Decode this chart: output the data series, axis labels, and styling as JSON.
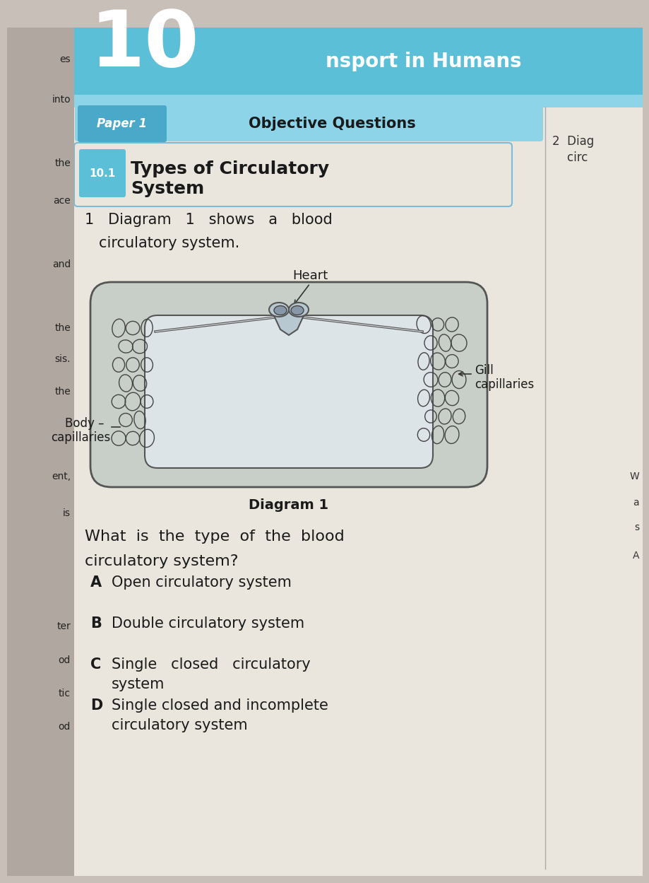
{
  "bg_color": "#c8c0b8",
  "page_bg": "#eae6de",
  "header_bg": "#5bbfd8",
  "header_text": "nsport in Humans",
  "chapter_num": "10",
  "paper_label": "Paper 1",
  "paper_section": "Objective Questions",
  "section_num": "10.1",
  "section_title_line1": "Types of Circulatory",
  "section_title_line2": "System",
  "question_text_line1": "1   Diagram   1   shows   a   blood",
  "question_text_line2": "circulatory system.",
  "diagram_label": "Diagram 1",
  "heart_label": "Heart",
  "gill_label": "Gill",
  "gill_label2": "capillaries",
  "body_label": "Body –",
  "body_label2": "capillaries",
  "question_main_line1": "What  is  the  type  of  the  blood",
  "question_main_line2": "circulatory system?",
  "options": [
    {
      "letter": "A",
      "text": "Open circulatory system"
    },
    {
      "letter": "B",
      "text": "Double circulatory system"
    },
    {
      "letter": "C",
      "text": "Single   closed   circulatory",
      "text2": "system"
    },
    {
      "letter": "D",
      "text": "Single closed and incomplete",
      "text2": "circulatory system"
    }
  ],
  "side_note1": "2  Diag",
  "side_note2": "    circ",
  "left_margin_texts_y": [
    38,
    95,
    185,
    238,
    328,
    418,
    462,
    508,
    628,
    680,
    840,
    888,
    935,
    982
  ],
  "left_margin_texts": [
    "es",
    "into",
    "the",
    "ace",
    "and",
    "the",
    "sis.",
    "the",
    "ent,",
    "is",
    "ter",
    "od",
    "tic",
    "od"
  ]
}
